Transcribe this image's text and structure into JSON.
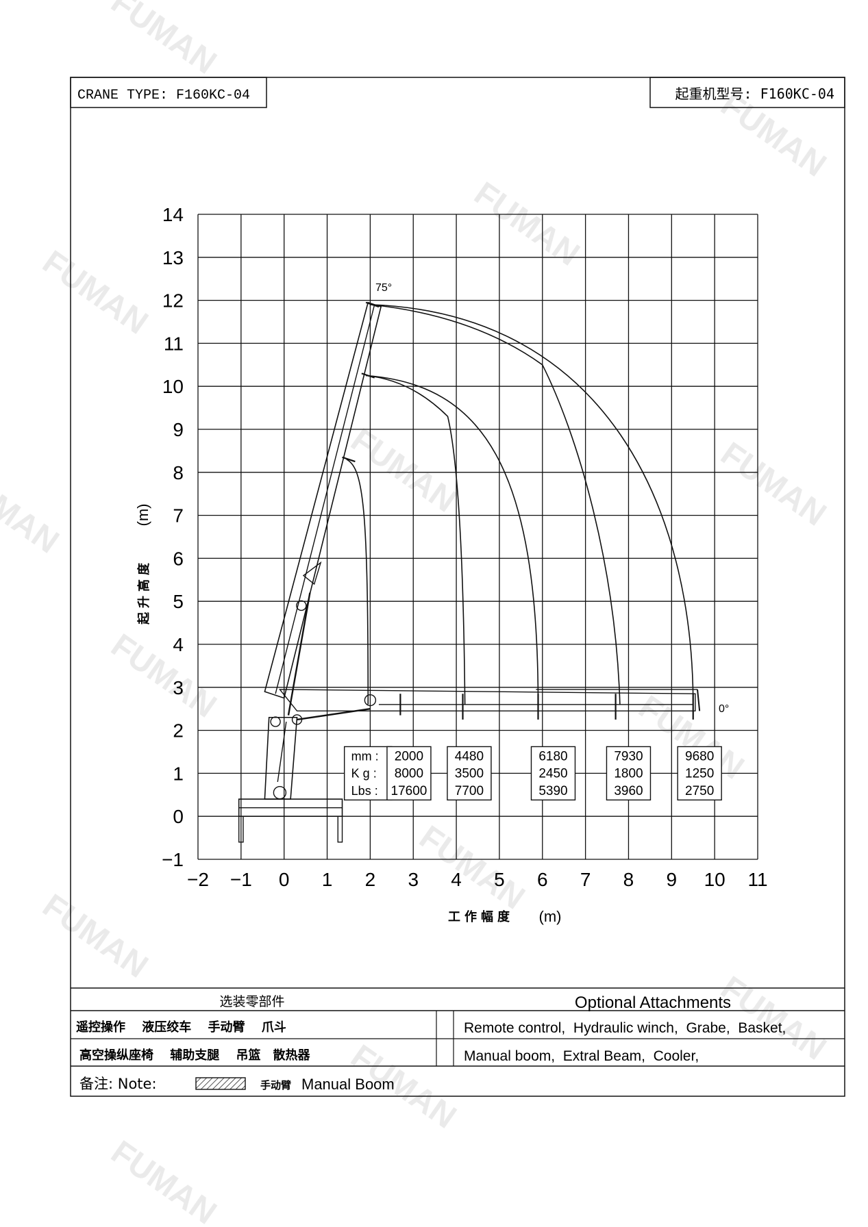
{
  "header": {
    "crane_type_label": "CRANE TYPE: F160KC-04",
    "crane_type_cn": "起重机型号: F160KC-04"
  },
  "chart_data": {
    "type": "load-chart",
    "xlabel": "工作幅度",
    "xunit": "(m)",
    "ylabel": "起升高度",
    "yunit": "(m)",
    "xlim": [
      -2,
      11
    ],
    "ylim": [
      -1,
      14
    ],
    "x_ticks": [
      -2,
      -1,
      0,
      1,
      2,
      3,
      4,
      5,
      6,
      7,
      8,
      9,
      10,
      11
    ],
    "y_ticks": [
      -1,
      0,
      1,
      2,
      3,
      4,
      5,
      6,
      7,
      8,
      9,
      10,
      11,
      12,
      13,
      14
    ],
    "x_tick_labels": [
      "−2",
      "−1",
      "0",
      "1",
      "2",
      "3",
      "4",
      "5",
      "6",
      "7",
      "8",
      "9",
      "10",
      "11"
    ],
    "y_tick_labels": [
      "−1",
      "0",
      "1",
      "2",
      "3",
      "4",
      "5",
      "6",
      "7",
      "8",
      "9",
      "10",
      "11",
      "12",
      "13",
      "14"
    ],
    "grid": true,
    "angle_max_label": "75°",
    "angle_min_label": "0°",
    "boom_base": [
      -0.05,
      2.8
    ],
    "boom_tips_raised": [
      [
        1.45,
        8.3
      ],
      [
        1.9,
        10.25
      ],
      [
        2.0,
        11.9
      ]
    ],
    "envelope_curves": [
      {
        "start": [
          1.45,
          8.3
        ],
        "mid": [
          1.95,
          6.5
        ],
        "end": [
          1.95,
          2.6
        ]
      },
      {
        "start": [
          1.9,
          10.25
        ],
        "bend": [
          3.8,
          9.3
        ],
        "end": [
          4.2,
          2.6
        ]
      },
      {
        "start": [
          1.9,
          10.25
        ],
        "mid": [
          5.3,
          7.5
        ],
        "end": [
          5.9,
          2.6
        ]
      },
      {
        "start": [
          2.0,
          11.9
        ],
        "kink": [
          6.0,
          10.5
        ],
        "mid": [
          7.4,
          6.5
        ],
        "end": [
          7.8,
          2.6
        ]
      },
      {
        "start": [
          2.0,
          11.9
        ],
        "mid": [
          8.9,
          6.5
        ],
        "end": [
          9.5,
          2.6
        ]
      }
    ],
    "table_row_labels": [
      "mm :",
      "K g :",
      "Lbs :"
    ],
    "load_table": [
      {
        "mm": "2000",
        "kg": "8000",
        "lbs": "17600"
      },
      {
        "mm": "4480",
        "kg": "3500",
        "lbs": "7700"
      },
      {
        "mm": "6180",
        "kg": "2450",
        "lbs": "5390"
      },
      {
        "mm": "7930",
        "kg": "1800",
        "lbs": "3960"
      },
      {
        "mm": "9680",
        "kg": "1250",
        "lbs": "2750"
      }
    ]
  },
  "attachments": {
    "cn_title": "选装零部件",
    "en_title": "Optional Attachments",
    "cn_row1": "遥控操作　 液压绞车　 手动臂　 爪斗",
    "cn_row2": "高空操纵座椅　 辅助支腿　 吊篮　散热器",
    "en_row1": "Remote control,  Hydraulic winch,  Grabe,  Basket,",
    "en_row2": "Manual boom,  Extral Beam,  Cooler,"
  },
  "note": {
    "label": "备注: Note:",
    "legend_cn": "手动臂",
    "legend_en": "Manual Boom"
  },
  "watermark": {
    "text": "FUMAN"
  }
}
